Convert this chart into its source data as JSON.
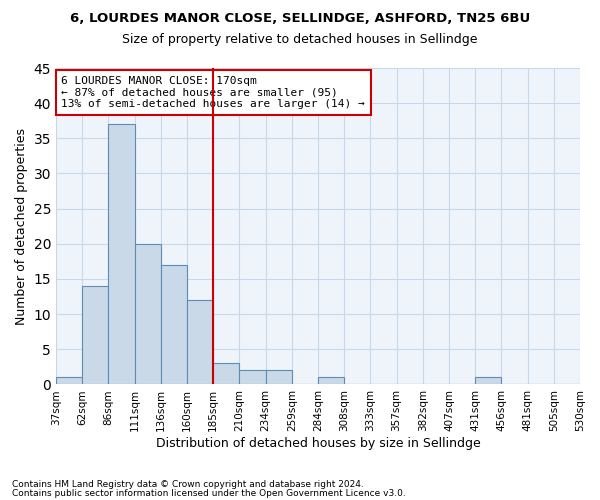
{
  "title1": "6, LOURDES MANOR CLOSE, SELLINDGE, ASHFORD, TN25 6BU",
  "title2": "Size of property relative to detached houses in Sellindge",
  "xlabel": "Distribution of detached houses by size in Sellindge",
  "ylabel": "Number of detached properties",
  "footnote1": "Contains HM Land Registry data © Crown copyright and database right 2024.",
  "footnote2": "Contains public sector information licensed under the Open Government Licence v3.0.",
  "annotation_line1": "6 LOURDES MANOR CLOSE: 170sqm",
  "annotation_line2": "← 87% of detached houses are smaller (95)",
  "annotation_line3": "13% of semi-detached houses are larger (14) →",
  "bar_values": [
    1,
    14,
    37,
    20,
    17,
    12,
    3,
    2,
    2,
    0,
    1,
    0,
    0,
    0,
    0,
    0,
    1,
    0,
    0,
    0
  ],
  "bin_labels": [
    "37sqm",
    "62sqm",
    "86sqm",
    "111sqm",
    "136sqm",
    "160sqm",
    "185sqm",
    "210sqm",
    "234sqm",
    "259sqm",
    "284sqm",
    "308sqm",
    "333sqm",
    "357sqm",
    "382sqm",
    "407sqm",
    "431sqm",
    "456sqm",
    "481sqm",
    "505sqm",
    "530sqm"
  ],
  "bar_color": "#c9d9e8",
  "bar_edge_color": "#5b8db8",
  "vline_x": 5.5,
  "vline_color": "#cc0000",
  "annotation_box_color": "#cc0000",
  "ylim": [
    0,
    45
  ],
  "yticks": [
    0,
    5,
    10,
    15,
    20,
    25,
    30,
    35,
    40,
    45
  ],
  "grid_color": "#c8d8e8",
  "background_color": "#eef4fa"
}
